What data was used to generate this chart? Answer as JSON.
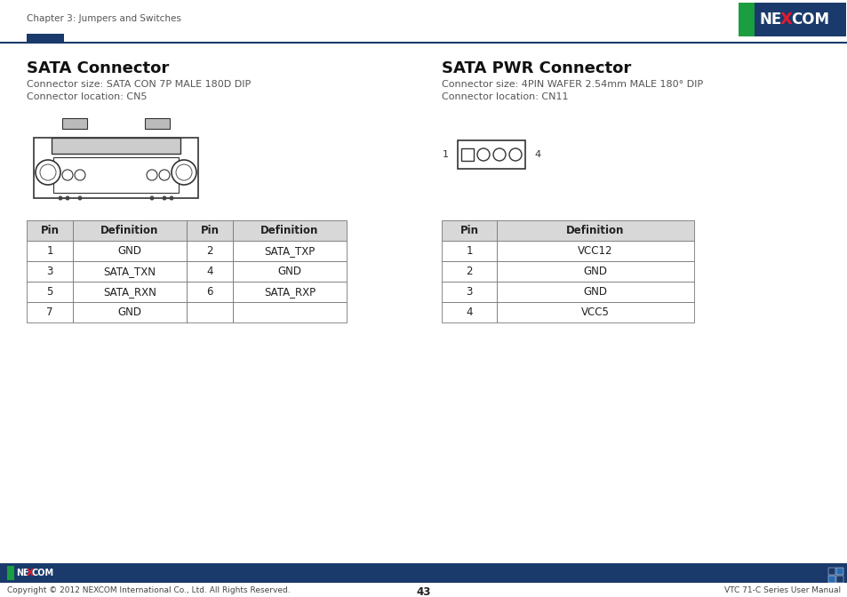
{
  "page_title": "Chapter 3: Jumpers and Switches",
  "page_number": "43",
  "footer_right": "VTC 71-C Series User Manual",
  "footer_left": "Copyright © 2012 NEXCOM International Co., Ltd. All Rights Reserved.",
  "nexcom_green": "#1a9e3f",
  "nexcom_blue": "#1a3a6b",
  "header_line_color": "#1a3a6b",
  "header_rect_color": "#1a3a6b",
  "left_section": {
    "title": "SATA Connector",
    "info_line1": "Connector size: SATA CON 7P MALE 180D DIP",
    "info_line2": "Connector location: CN5",
    "table_headers": [
      "Pin",
      "Definition",
      "Pin",
      "Definition"
    ],
    "table_data": [
      [
        "1",
        "GND",
        "2",
        "SATA_TXP"
      ],
      [
        "3",
        "SATA_TXN",
        "4",
        "GND"
      ],
      [
        "5",
        "SATA_RXN",
        "6",
        "SATA_RXP"
      ],
      [
        "7",
        "GND",
        "",
        ""
      ]
    ]
  },
  "right_section": {
    "title": "SATA PWR Connector",
    "info_line1": "Connector size: 4PIN WAFER 2.54mm MALE 180° DIP",
    "info_line2": "Connector location: CN11",
    "table_headers": [
      "Pin",
      "Definition"
    ],
    "table_data": [
      [
        "1",
        "VCC12"
      ],
      [
        "2",
        "GND"
      ],
      [
        "3",
        "GND"
      ],
      [
        "4",
        "VCC5"
      ]
    ]
  },
  "bg_color": "#ffffff",
  "table_border_color": "#777777",
  "table_header_bg": "#d8d8d8",
  "table_text_color": "#222222"
}
